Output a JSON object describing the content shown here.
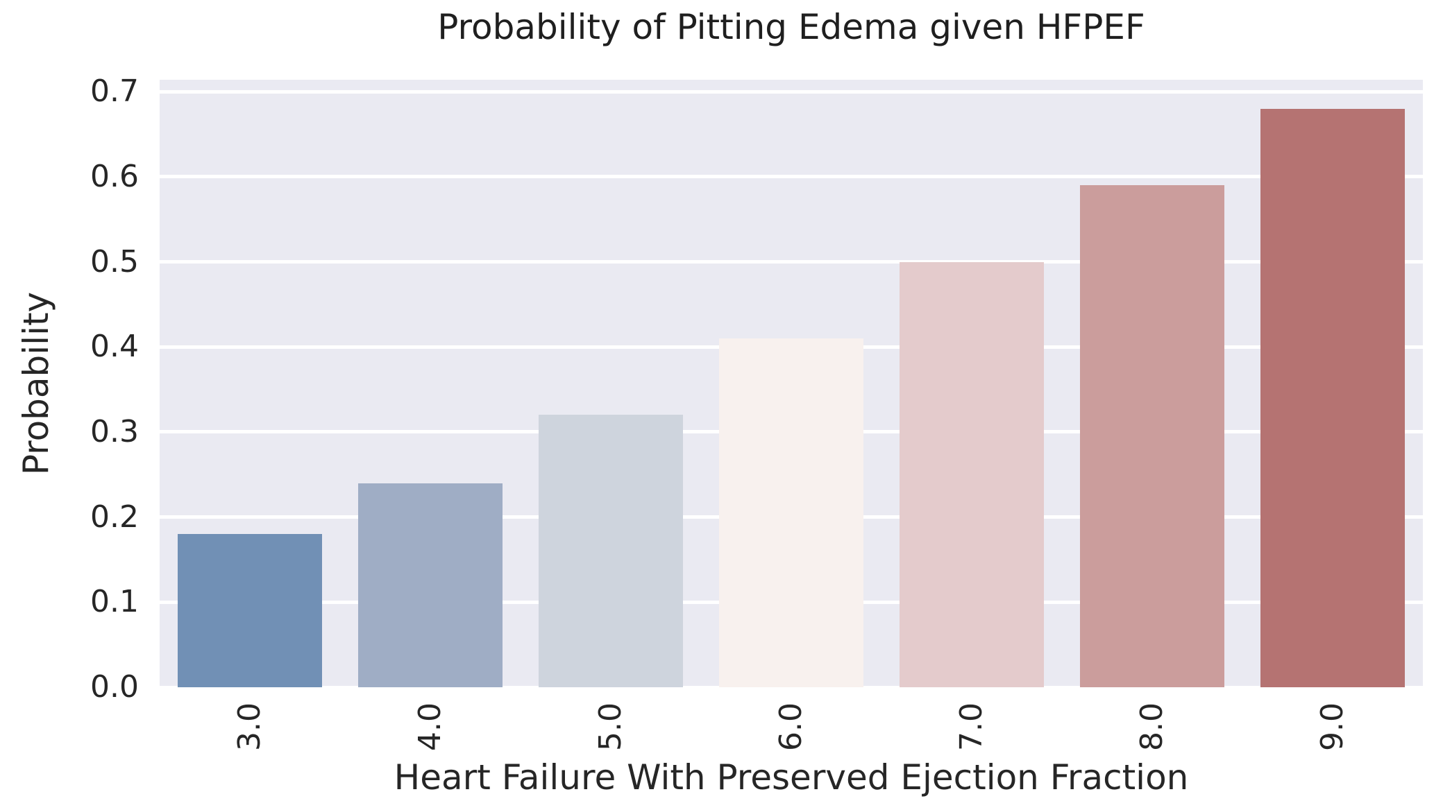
{
  "figure": {
    "background": "#ffffff",
    "plot_background": "#eaeaf2",
    "grid_color": "#ffffff",
    "text_color": "#262626",
    "style": "seaborn-darkgrid"
  },
  "chart_data": {
    "type": "bar",
    "title": "Probability of Pitting Edema given HFPEF",
    "xlabel": "Heart Failure With Preserved Ejection Fraction",
    "ylabel": "Probability",
    "categories": [
      "3.0",
      "4.0",
      "5.0",
      "6.0",
      "7.0",
      "8.0",
      "9.0"
    ],
    "values": [
      0.18,
      0.24,
      0.32,
      0.41,
      0.5,
      0.59,
      0.68
    ],
    "bar_colors": [
      "#7190b5",
      "#9fadc5",
      "#ced4dd",
      "#f8f1ee",
      "#e4cbcc",
      "#cb9d9c",
      "#b57372"
    ],
    "ytick_labels": [
      "0.0",
      "0.1",
      "0.2",
      "0.3",
      "0.4",
      "0.5",
      "0.6",
      "0.7"
    ],
    "ytick_values": [
      0.0,
      0.1,
      0.2,
      0.3,
      0.4,
      0.5,
      0.6,
      0.7
    ],
    "ylim": [
      0,
      0.714
    ],
    "grid": "horizontal",
    "legend_position": "none",
    "xtick_rotation_deg": 90,
    "bar_width_fraction": 0.8
  }
}
